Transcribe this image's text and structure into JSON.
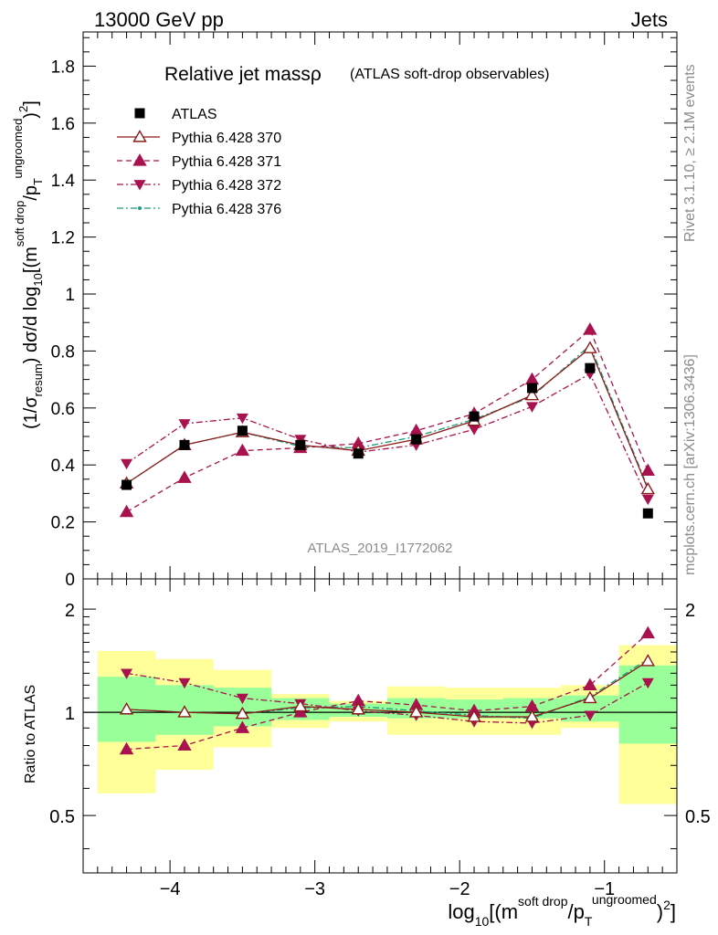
{
  "header": {
    "left": "13000 GeV pp",
    "right": "Jets",
    "side_rivet": "Rivet 3.1.10, ≥ 2.1M events",
    "side_mcplots": "mcplots.cern.ch [arXiv:1306.3436]"
  },
  "chart_data": [
    {
      "type": "scatter",
      "title": "Relative jet massρ",
      "subtitle": "(ATLAS soft-drop observables)",
      "watermark": "ATLAS_2019_I1772062",
      "ylabel": "(1/σresum) dσ/d log10[(m soft drop/pT ungroomed)2]",
      "ylabel_parts": [
        "(1/σ",
        "resum",
        ") dσ/d log",
        "10",
        "[(m",
        "soft drop",
        "/p",
        "T",
        "ungroomed",
        ")",
        "2",
        "]"
      ],
      "xlim": [
        -4.6,
        -0.5
      ],
      "ylim": [
        0,
        1.92
      ],
      "yticks": [
        0,
        0.2,
        0.4,
        0.6,
        0.8,
        1,
        1.2,
        1.4,
        1.6,
        1.8
      ],
      "ytick_labels": [
        "0",
        "0.2",
        "0.4",
        "0.6",
        "0.8",
        "1",
        "1.2",
        "1.4",
        "1.6",
        "1.8"
      ],
      "x": [
        -4.3,
        -3.9,
        -3.5,
        -3.1,
        -2.7,
        -2.3,
        -1.9,
        -1.5,
        -1.1,
        -0.7
      ],
      "series": [
        {
          "name": "ATLAS",
          "color": "#000000",
          "marker": "square",
          "line": "none",
          "values": [
            0.33,
            0.47,
            0.52,
            0.47,
            0.44,
            0.49,
            0.57,
            0.67,
            0.74,
            0.23
          ]
        },
        {
          "name": "Pythia 6.428 370",
          "color": "#8b1a1a",
          "marker": "triangle-up-open",
          "line": "solid",
          "values": [
            0.335,
            0.47,
            0.515,
            0.47,
            0.45,
            0.49,
            0.555,
            0.645,
            0.81,
            0.315
          ]
        },
        {
          "name": "Pythia 6.428 371",
          "color": "#a8124e",
          "marker": "triangle-up",
          "line": "dashed",
          "values": [
            0.235,
            0.355,
            0.45,
            0.46,
            0.475,
            0.52,
            0.58,
            0.7,
            0.875,
            0.38
          ]
        },
        {
          "name": "Pythia 6.428 372",
          "color": "#a8124e",
          "marker": "triangle-down",
          "line": "dashdot",
          "values": [
            0.405,
            0.545,
            0.565,
            0.49,
            0.445,
            0.47,
            0.525,
            0.605,
            0.72,
            0.28
          ]
        },
        {
          "name": "Pythia 6.428 376",
          "color": "#1a9c7a",
          "marker": "dot",
          "line": "dashdot",
          "values": [
            0.335,
            0.47,
            0.515,
            0.465,
            0.46,
            0.5,
            0.56,
            0.64,
            0.82,
            0.32
          ]
        }
      ],
      "legend_position": "top-left"
    },
    {
      "type": "scatter",
      "ylabel": "Ratio to ATLAS",
      "xlabel": "log10[(m soft drop/pT ungroomed)2]",
      "xlabel_parts": [
        "log",
        "10",
        "[(m",
        "soft drop",
        "/p",
        "T",
        "ungroomed",
        ")",
        "2",
        "]"
      ],
      "xlim": [
        -4.6,
        -0.5
      ],
      "ylim": [
        0.34,
        2.45
      ],
      "xticks": [
        -4,
        -3,
        -2,
        -1
      ],
      "xtick_labels": [
        "−4",
        "−3",
        "−2",
        "−1"
      ],
      "yticks": [
        0.5,
        1,
        2
      ],
      "ytick_labels": [
        "0.5",
        "1",
        "2"
      ],
      "reference_line": 1,
      "bins": [
        [
          -4.5,
          -4.1
        ],
        [
          -4.1,
          -3.7
        ],
        [
          -3.7,
          -3.3
        ],
        [
          -3.3,
          -2.9
        ],
        [
          -2.9,
          -2.5
        ],
        [
          -2.5,
          -2.1
        ],
        [
          -2.1,
          -1.7
        ],
        [
          -1.7,
          -1.3
        ],
        [
          -1.3,
          -0.9
        ],
        [
          -0.9,
          -0.5
        ]
      ],
      "band_stat_lo": [
        0.82,
        0.86,
        0.91,
        0.95,
        0.97,
        0.96,
        0.96,
        0.96,
        0.94,
        0.81
      ],
      "band_stat_hi": [
        1.27,
        1.2,
        1.18,
        1.1,
        1.06,
        1.1,
        1.09,
        1.1,
        1.12,
        1.37
      ],
      "band_stat_color": "#99ff99",
      "band_sys_lo": [
        0.58,
        0.68,
        0.79,
        0.9,
        0.94,
        0.86,
        0.86,
        0.86,
        0.9,
        0.54
      ],
      "band_sys_hi": [
        1.51,
        1.43,
        1.33,
        1.13,
        1.08,
        1.19,
        1.18,
        1.18,
        1.2,
        1.57
      ],
      "band_sys_color": "#ffff99",
      "series": [
        {
          "name": "Pythia 6.428 370",
          "values": [
            1.02,
            1.0,
            0.99,
            1.04,
            1.02,
            1.0,
            0.97,
            0.97,
            1.1,
            1.41
          ]
        },
        {
          "name": "Pythia 6.428 371",
          "values": [
            0.78,
            0.8,
            0.9,
            1.0,
            1.08,
            1.05,
            1.01,
            1.04,
            1.2,
            1.7
          ]
        },
        {
          "name": "Pythia 6.428 372",
          "values": [
            1.3,
            1.22,
            1.1,
            1.06,
            1.01,
            0.98,
            0.94,
            0.93,
            0.98,
            1.22
          ]
        },
        {
          "name": "Pythia 6.428 376",
          "values": [
            1.02,
            1.0,
            0.99,
            1.03,
            1.04,
            1.01,
            0.98,
            0.96,
            1.11,
            1.43
          ]
        }
      ]
    }
  ]
}
